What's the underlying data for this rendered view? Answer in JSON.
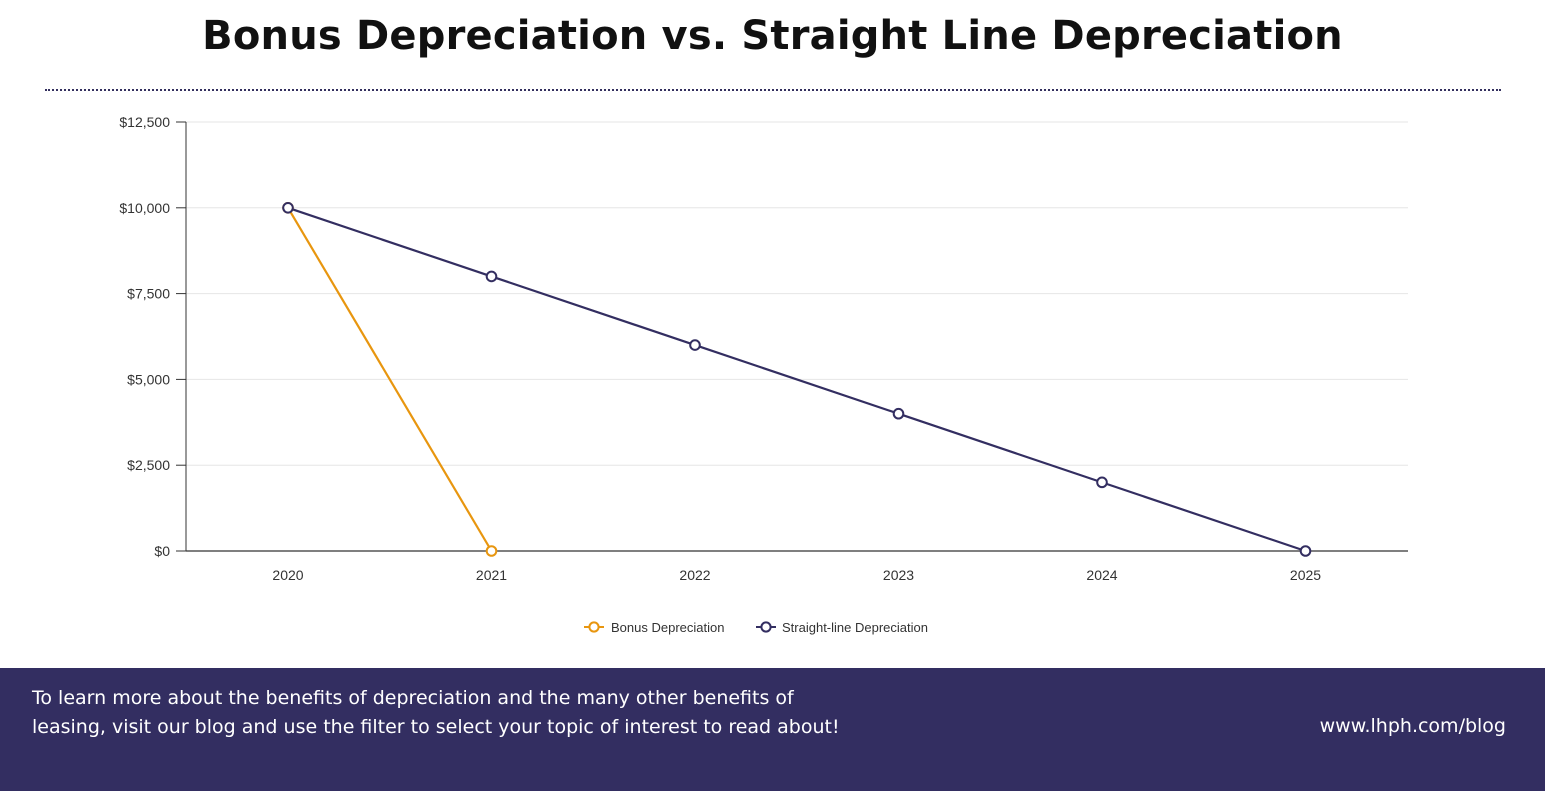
{
  "colors": {
    "bonus": "#e8960f",
    "straight": "#332e61",
    "footer_bg": "#332e61",
    "grid": "#e6e6e6",
    "axis": "#333333"
  },
  "footer": {
    "text": "To learn more about the benefits of depreciation and the many other benefits of leasing, visit our blog and use the filter to select your topic of interest to read about!",
    "link": "www.lhph.com/blog"
  },
  "chart_data": {
    "type": "line",
    "title": "Bonus Depreciation vs. Straight Line Depreciation",
    "xlabel": "",
    "ylabel": "",
    "categories": [
      "2020",
      "2021",
      "2022",
      "2023",
      "2024",
      "2025"
    ],
    "y_ticks": [
      "$0",
      "$2,500",
      "$5,000",
      "$7,500",
      "$10,000",
      "$12,500"
    ],
    "ylim": [
      0,
      12500
    ],
    "grid": true,
    "legend_position": "bottom-center",
    "series": [
      {
        "name": "Bonus Depreciation",
        "color": "#e8960f",
        "values": [
          10000,
          0,
          null,
          null,
          null,
          null
        ]
      },
      {
        "name": "Straight-line Depreciation",
        "color": "#332e61",
        "values": [
          10000,
          8000,
          6000,
          4000,
          2000,
          0
        ]
      }
    ]
  }
}
